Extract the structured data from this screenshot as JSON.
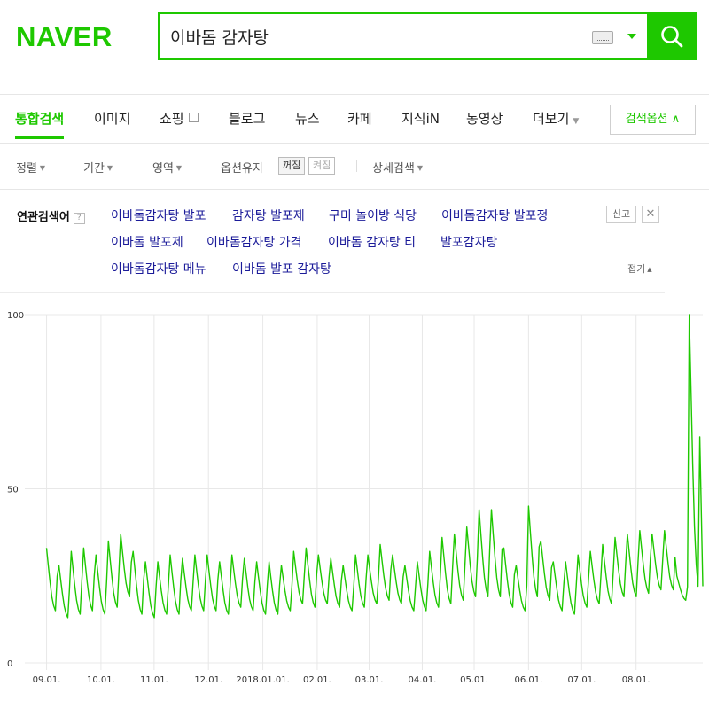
{
  "header": {
    "logo": "NAVER",
    "search_value": "이바돔 감자탕"
  },
  "tabs": [
    {
      "label": "통합검색",
      "active": true
    },
    {
      "label": "이미지"
    },
    {
      "label": "쇼핑"
    },
    {
      "label": "블로그"
    },
    {
      "label": "뉴스"
    },
    {
      "label": "카페"
    },
    {
      "label": "지식iN"
    },
    {
      "label": "동영상"
    },
    {
      "label": "더보기"
    }
  ],
  "search_options_label": "검색옵션",
  "filters": {
    "sort": "정렬",
    "period": "기간",
    "area": "영역",
    "keep_options": "옵션유지",
    "off_label": "꺼짐",
    "on_label": "켜짐",
    "detail": "상세검색"
  },
  "related": {
    "title": "연관검색어",
    "help": "?",
    "keywords": [
      "이바돔감자탕 발포",
      "감자탕 발포제",
      "구미 놀이방 식당",
      "이바돔감자탕 발포정",
      "이바돔 발포제",
      "이바돔감자탕 가격",
      "이바돔 감자탕 티",
      "발포감자탕",
      "이바돔감자탕 메뉴",
      "이바돔 발포 감자탕"
    ],
    "report_label": "신고",
    "close_label": "✕",
    "fold_label": "접기"
  },
  "chart_data": {
    "type": "line",
    "y_ticks": [
      "100",
      "50",
      "0"
    ],
    "ylim": [
      0,
      100
    ],
    "x_tick_labels": [
      "09.01.",
      "10.01.",
      "11.01.",
      "12.01.",
      "2018.01.01.",
      "02.01.",
      "03.01.",
      "04.01.",
      "05.01.",
      "06.01.",
      "07.01.",
      "08.01."
    ],
    "x_tick_positions": [
      0.0,
      4.4,
      8.7,
      13.1,
      17.5,
      21.9,
      26.1,
      30.4,
      34.6,
      39.0,
      43.3,
      47.7
    ],
    "x_range": [
      -0.9,
      53.1
    ],
    "grid": true,
    "color": "#1ec800",
    "weekly_peaks": [
      33,
      28,
      32,
      33,
      31,
      35,
      37,
      32,
      29,
      29,
      31,
      30,
      31,
      31,
      29,
      31,
      30,
      29,
      29,
      28,
      32,
      33,
      31,
      30,
      28,
      31,
      31,
      34,
      31,
      28,
      29,
      32,
      36,
      37,
      39,
      44,
      44,
      33,
      28,
      45,
      35,
      29,
      29,
      31,
      32,
      34,
      36,
      37,
      38,
      37,
      38,
      25,
      100
    ],
    "weekly_troughs": [
      15,
      13,
      14,
      15,
      14,
      16,
      19,
      14,
      13,
      14,
      14,
      15,
      15,
      15,
      14,
      16,
      15,
      14,
      14,
      15,
      17,
      16,
      17,
      16,
      15,
      16,
      17,
      18,
      17,
      15,
      15,
      16,
      17,
      18,
      19,
      19,
      19,
      16,
      15,
      19,
      18,
      15,
      14,
      16,
      17,
      17,
      19,
      19,
      20,
      21,
      21,
      18,
      22
    ]
  }
}
